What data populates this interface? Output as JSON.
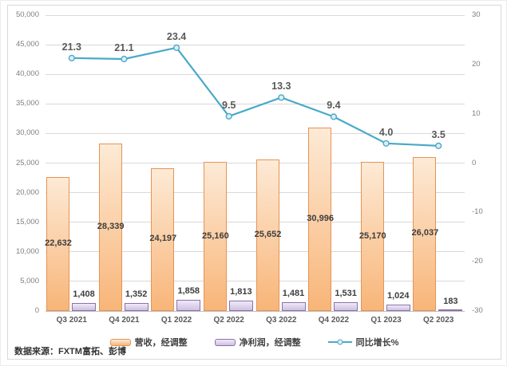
{
  "chart_data": {
    "type": "bar",
    "subtype": "combo-bar-line-dual-axis",
    "categories": [
      "Q3 2021",
      "Q4 2021",
      "Q1 2022",
      "Q2 2022",
      "Q3 2022",
      "Q4 2022",
      "Q1 2023",
      "Q2 2023"
    ],
    "series": [
      {
        "name": "营收，经调整",
        "type": "bar",
        "axis": "left",
        "values": [
          22632,
          28339,
          24197,
          25160,
          25652,
          30996,
          25170,
          26037
        ]
      },
      {
        "name": "净利润，经调整",
        "type": "bar",
        "axis": "left",
        "values": [
          1408,
          1352,
          1858,
          1813,
          1481,
          1531,
          1024,
          183
        ]
      },
      {
        "name": "同比增长%",
        "type": "line",
        "axis": "right",
        "values": [
          21.3,
          21.1,
          23.4,
          9.5,
          13.3,
          9.4,
          4.0,
          3.5
        ]
      }
    ],
    "left_axis": {
      "min": 0,
      "max": 50000,
      "step": 5000
    },
    "right_axis": {
      "min": -30,
      "max": 30,
      "step": 10
    },
    "grid": true,
    "legend_position": "bottom",
    "colors": {
      "revenue_border": "#e59455",
      "revenue_fill_top": "#fdead6",
      "revenue_fill_bottom": "#f8b578",
      "profit_border": "#8c70ac",
      "profit_fill_top": "#efeaf6",
      "profit_fill_bottom": "#cfc0e2",
      "line": "#4aa9c9",
      "marker_fill": "#ddeef5",
      "grid": "#d9d9d9",
      "axis_line": "#bfbfbf"
    }
  },
  "legend": {
    "revenue": "营收，经调整",
    "net_profit": "净利润，经调整",
    "yoy": "同比增长%"
  },
  "source_note": "数据来源：FXTM富拓、彭博"
}
